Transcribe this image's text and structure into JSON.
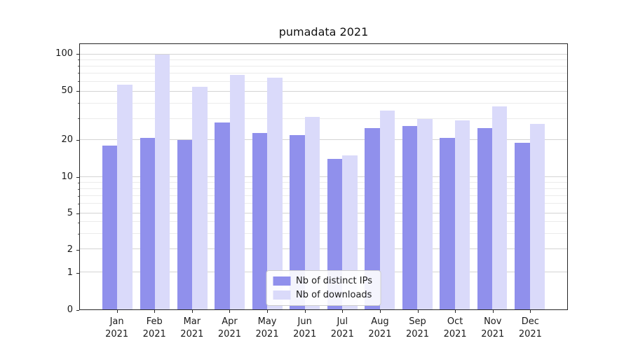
{
  "chart_data": {
    "type": "bar",
    "title": "pumadata 2021",
    "categories": [
      "Jan",
      "Feb",
      "Mar",
      "Apr",
      "May",
      "Jun",
      "Jul",
      "Aug",
      "Sep",
      "Oct",
      "Nov",
      "Dec"
    ],
    "year": "2021",
    "series": [
      {
        "name": "Nb of distinct IPs",
        "color": "#9090ec",
        "values": [
          18,
          21,
          20,
          28,
          23,
          22,
          14,
          25,
          26,
          21,
          25,
          19
        ]
      },
      {
        "name": "Nb of downloads",
        "color": "#dadafa",
        "values": [
          57,
          100,
          55,
          68,
          65,
          31,
          15,
          35,
          30,
          29,
          38,
          27
        ]
      }
    ],
    "yscale": "symlog",
    "yticks": [
      0,
      1,
      2,
      5,
      10,
      20,
      50,
      100
    ],
    "minor_yticks": [
      3,
      4,
      6,
      7,
      8,
      9,
      30,
      40,
      60,
      70,
      80,
      90
    ],
    "ylim": [
      0,
      110
    ],
    "grid": "horizontal",
    "legend_position": "lower center"
  }
}
